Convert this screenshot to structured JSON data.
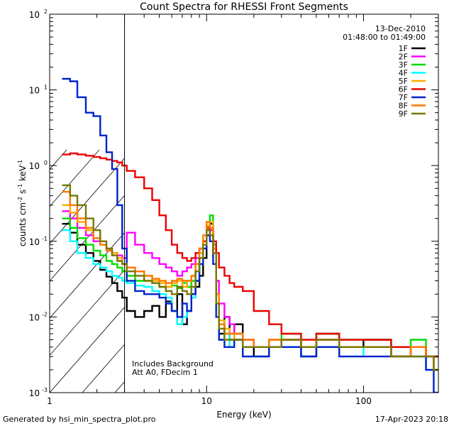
{
  "chart_data": {
    "type": "line",
    "title": "Count Spectra for RHESSI Front Segments",
    "xlabel": "Energy (keV)",
    "ylabel_parts": [
      "counts cm",
      "-2",
      " s",
      "-1",
      " keV",
      "-1"
    ],
    "xscale": "log",
    "yscale": "log",
    "xlim": [
      1,
      300
    ],
    "ylim": [
      0.001,
      100
    ],
    "x_ticks": [
      {
        "value": 1,
        "label": "1"
      },
      {
        "value": 10,
        "label": "10"
      },
      {
        "value": 100,
        "label": "100"
      }
    ],
    "y_ticks": [
      {
        "value": 100,
        "base": "10",
        "exp": "2"
      },
      {
        "value": 10,
        "base": "10",
        "exp": "1"
      },
      {
        "value": 1,
        "base": "10",
        "exp": "0"
      },
      {
        "value": 0.1,
        "base": "10",
        "exp": "-1"
      },
      {
        "value": 0.01,
        "base": "10",
        "exp": "-2"
      },
      {
        "value": 0.001,
        "base": "10",
        "exp": "-3"
      }
    ],
    "date": "13-Dec-2010",
    "time_range": "01:48:00 to 01:49:00",
    "annotation_lines": [
      "Includes Background",
      "Att A0, FDecim 1"
    ],
    "hatched_region": [
      1,
      3
    ],
    "legend_position": "top-right",
    "series": [
      {
        "name": "1F",
        "color": "#000000",
        "x": [
          1.2,
          1.35,
          1.5,
          1.7,
          1.9,
          2.1,
          2.3,
          2.5,
          2.7,
          2.9,
          3.1,
          3.5,
          4,
          4.5,
          5,
          5.5,
          6,
          6.5,
          7,
          7.5,
          8,
          8.5,
          9,
          9.5,
          10,
          10.5,
          11,
          11.5,
          12,
          13,
          14,
          15,
          17,
          20,
          25,
          30,
          40,
          50,
          70,
          100,
          150,
          200,
          250,
          280
        ],
        "y": [
          0.17,
          0.13,
          0.09,
          0.07,
          0.055,
          0.042,
          0.034,
          0.028,
          0.022,
          0.018,
          0.012,
          0.01,
          0.012,
          0.014,
          0.01,
          0.016,
          0.012,
          0.02,
          0.008,
          0.012,
          0.02,
          0.025,
          0.035,
          0.06,
          0.12,
          0.17,
          0.08,
          0.02,
          0.006,
          0.01,
          0.005,
          0.008,
          0.004,
          0.003,
          0.004,
          0.005,
          0.003,
          0.006,
          0.004,
          0.005,
          0.003,
          0.004,
          0.003,
          0.003
        ]
      },
      {
        "name": "2F",
        "color": "#ff00ff",
        "x": [
          1.2,
          1.35,
          1.5,
          1.7,
          1.9,
          2.1,
          2.3,
          2.5,
          2.7,
          2.9,
          3.1,
          3.5,
          4,
          4.5,
          5,
          5.5,
          6,
          6.5,
          7,
          7.5,
          8,
          8.5,
          9,
          9.5,
          10,
          10.5,
          11,
          11.5,
          12,
          13,
          14,
          15,
          17,
          20,
          25,
          30,
          40,
          50,
          70,
          100,
          150,
          200,
          250,
          280
        ],
        "y": [
          0.25,
          0.2,
          0.15,
          0.12,
          0.1,
          0.09,
          0.08,
          0.07,
          0.065,
          0.06,
          0.13,
          0.09,
          0.07,
          0.06,
          0.05,
          0.045,
          0.04,
          0.035,
          0.04,
          0.045,
          0.05,
          0.06,
          0.08,
          0.1,
          0.16,
          0.14,
          0.07,
          0.03,
          0.015,
          0.01,
          0.008,
          0.006,
          0.005,
          0.004,
          0.004,
          0.005,
          0.003,
          0.005,
          0.004,
          0.004,
          0.003,
          0.004,
          0.003,
          0.002
        ]
      },
      {
        "name": "3F",
        "color": "#00dd00",
        "x": [
          1.2,
          1.35,
          1.5,
          1.7,
          1.9,
          2.1,
          2.3,
          2.5,
          2.7,
          2.9,
          3.1,
          3.5,
          4,
          4.5,
          5,
          5.5,
          6,
          6.5,
          7,
          7.5,
          8,
          8.5,
          9,
          9.5,
          10,
          10.5,
          11,
          11.5,
          12,
          13,
          14,
          15,
          17,
          20,
          25,
          30,
          40,
          50,
          70,
          100,
          150,
          200,
          250,
          280
        ],
        "y": [
          0.2,
          0.15,
          0.11,
          0.09,
          0.075,
          0.065,
          0.055,
          0.05,
          0.045,
          0.04,
          0.035,
          0.03,
          0.03,
          0.028,
          0.025,
          0.025,
          0.026,
          0.024,
          0.028,
          0.025,
          0.03,
          0.04,
          0.06,
          0.1,
          0.18,
          0.22,
          0.09,
          0.02,
          0.008,
          0.006,
          0.005,
          0.006,
          0.004,
          0.004,
          0.005,
          0.006,
          0.004,
          0.006,
          0.005,
          0.005,
          0.004,
          0.005,
          0.003,
          0.002
        ]
      },
      {
        "name": "4F",
        "color": "#00ffff",
        "x": [
          1.2,
          1.35,
          1.5,
          1.7,
          1.9,
          2.1,
          2.3,
          2.5,
          2.7,
          2.9,
          3.1,
          3.5,
          4,
          4.5,
          5,
          5.5,
          6,
          6.5,
          7,
          7.5,
          8,
          8.5,
          9,
          9.5,
          10,
          10.5,
          11,
          11.5,
          12,
          13,
          14,
          15,
          17,
          20,
          25,
          30,
          40,
          50,
          70,
          100,
          150,
          200,
          250,
          280
        ],
        "y": [
          0.14,
          0.1,
          0.07,
          0.06,
          0.05,
          0.045,
          0.04,
          0.035,
          0.033,
          0.03,
          0.028,
          0.026,
          0.025,
          0.022,
          0.02,
          0.018,
          0.012,
          0.008,
          0.01,
          0.012,
          0.018,
          0.03,
          0.05,
          0.09,
          0.15,
          0.18,
          0.08,
          0.015,
          0.005,
          0.006,
          0.004,
          0.005,
          0.003,
          0.003,
          0.004,
          0.004,
          0.003,
          0.004,
          0.003,
          0.004,
          0.003,
          0.003,
          0.002,
          0.002
        ]
      },
      {
        "name": "5F",
        "color": "#ffaa00",
        "x": [
          1.2,
          1.35,
          1.5,
          1.7,
          1.9,
          2.1,
          2.3,
          2.5,
          2.7,
          2.9,
          3.1,
          3.5,
          4,
          4.5,
          5,
          5.5,
          6,
          6.5,
          7,
          7.5,
          8,
          8.5,
          9,
          9.5,
          10,
          10.5,
          11,
          11.5,
          12,
          13,
          14,
          15,
          17,
          20,
          25,
          30,
          40,
          50,
          70,
          100,
          150,
          200,
          250,
          280
        ],
        "y": [
          0.3,
          0.24,
          0.18,
          0.14,
          0.11,
          0.09,
          0.08,
          0.07,
          0.06,
          0.05,
          0.045,
          0.04,
          0.035,
          0.03,
          0.028,
          0.025,
          0.028,
          0.03,
          0.025,
          0.03,
          0.035,
          0.05,
          0.07,
          0.1,
          0.16,
          0.18,
          0.08,
          0.02,
          0.009,
          0.007,
          0.006,
          0.005,
          0.004,
          0.004,
          0.005,
          0.005,
          0.004,
          0.005,
          0.004,
          0.004,
          0.003,
          0.004,
          0.003,
          0.002
        ]
      },
      {
        "name": "6F",
        "color": "#ee0000",
        "x": [
          1.2,
          1.35,
          1.5,
          1.7,
          1.9,
          2.1,
          2.3,
          2.5,
          2.7,
          2.9,
          3.1,
          3.5,
          4,
          4.5,
          5,
          5.5,
          6,
          6.5,
          7,
          7.5,
          8,
          8.5,
          9,
          9.5,
          10,
          10.5,
          11,
          11.5,
          12,
          13,
          14,
          15,
          17,
          20,
          25,
          30,
          40,
          50,
          70,
          100,
          150,
          200,
          250,
          280
        ],
        "y": [
          1.4,
          1.45,
          1.4,
          1.35,
          1.3,
          1.25,
          1.2,
          1.15,
          1.1,
          1.0,
          0.85,
          0.7,
          0.5,
          0.35,
          0.22,
          0.14,
          0.09,
          0.07,
          0.06,
          0.055,
          0.06,
          0.07,
          0.08,
          0.1,
          0.15,
          0.12,
          0.1,
          0.07,
          0.045,
          0.035,
          0.028,
          0.025,
          0.022,
          0.012,
          0.008,
          0.006,
          0.005,
          0.006,
          0.005,
          0.005,
          0.004,
          0.004,
          0.003,
          0.003
        ]
      },
      {
        "name": "7F",
        "color": "#0022cc",
        "x": [
          1.2,
          1.35,
          1.5,
          1.7,
          1.9,
          2.1,
          2.3,
          2.5,
          2.7,
          2.9,
          3.1,
          3.5,
          4,
          4.5,
          5,
          5.5,
          6,
          6.5,
          7,
          7.5,
          8,
          8.5,
          9,
          9.5,
          10,
          10.5,
          11,
          11.5,
          12,
          13,
          14,
          15,
          17,
          20,
          25,
          30,
          40,
          50,
          70,
          100,
          150,
          200,
          250,
          280
        ],
        "y": [
          14,
          13,
          8,
          5,
          4.5,
          2.5,
          1.5,
          0.9,
          0.3,
          0.08,
          0.03,
          0.022,
          0.02,
          0.02,
          0.018,
          0.015,
          0.012,
          0.01,
          0.015,
          0.012,
          0.02,
          0.03,
          0.05,
          0.08,
          0.12,
          0.1,
          0.05,
          0.01,
          0.005,
          0.004,
          0.004,
          0.005,
          0.003,
          0.003,
          0.004,
          0.004,
          0.003,
          0.004,
          0.003,
          0.003,
          0.003,
          0.003,
          0.002,
          0.001
        ]
      },
      {
        "name": "8F",
        "color": "#ff7700",
        "x": [
          1.2,
          1.35,
          1.5,
          1.7,
          1.9,
          2.1,
          2.3,
          2.5,
          2.7,
          2.9,
          3.1,
          3.5,
          4,
          4.5,
          5,
          5.5,
          6,
          6.5,
          7,
          7.5,
          8,
          8.5,
          9,
          9.5,
          10,
          10.5,
          11,
          11.5,
          12,
          13,
          14,
          15,
          17,
          20,
          25,
          30,
          40,
          50,
          70,
          100,
          150,
          200,
          250,
          280
        ],
        "y": [
          0.45,
          0.3,
          0.2,
          0.15,
          0.11,
          0.09,
          0.075,
          0.065,
          0.055,
          0.05,
          0.045,
          0.04,
          0.035,
          0.032,
          0.03,
          0.028,
          0.03,
          0.032,
          0.03,
          0.03,
          0.035,
          0.05,
          0.08,
          0.12,
          0.18,
          0.15,
          0.07,
          0.02,
          0.008,
          0.006,
          0.006,
          0.006,
          0.005,
          0.004,
          0.005,
          0.005,
          0.004,
          0.005,
          0.004,
          0.004,
          0.003,
          0.004,
          0.003,
          0.002
        ]
      },
      {
        "name": "9F",
        "color": "#777700",
        "x": [
          1.2,
          1.35,
          1.5,
          1.7,
          1.9,
          2.1,
          2.3,
          2.5,
          2.7,
          2.9,
          3.1,
          3.5,
          4,
          4.5,
          5,
          5.5,
          6,
          6.5,
          7,
          7.5,
          8,
          8.5,
          9,
          9.5,
          10,
          10.5,
          11,
          11.5,
          12,
          13,
          14,
          15,
          17,
          20,
          25,
          30,
          40,
          50,
          70,
          100,
          150,
          200,
          250,
          280
        ],
        "y": [
          0.55,
          0.4,
          0.3,
          0.2,
          0.14,
          0.1,
          0.08,
          0.065,
          0.055,
          0.05,
          0.04,
          0.035,
          0.03,
          0.028,
          0.025,
          0.022,
          0.02,
          0.025,
          0.022,
          0.02,
          0.025,
          0.04,
          0.06,
          0.09,
          0.14,
          0.12,
          0.07,
          0.015,
          0.007,
          0.005,
          0.005,
          0.005,
          0.004,
          0.004,
          0.004,
          0.005,
          0.004,
          0.005,
          0.004,
          0.004,
          0.003,
          0.003,
          0.003,
          0.002
        ]
      }
    ]
  },
  "footer": {
    "generated_by": "Generated by hsi_min_spectra_plot.pro",
    "timestamp": "17-Apr-2023 20:18"
  }
}
